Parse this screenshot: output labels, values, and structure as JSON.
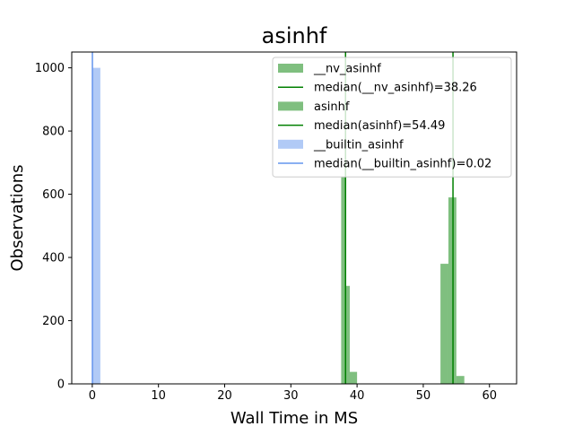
{
  "chart_data": {
    "type": "bar",
    "title": "asinhf",
    "xlabel": "Wall Time in MS",
    "ylabel": "Observations",
    "xlim": [
      -3.1,
      64.1
    ],
    "ylim": [
      0,
      1050
    ],
    "xticks": [
      0,
      10,
      20,
      30,
      40,
      50,
      60
    ],
    "yticks": [
      0,
      200,
      400,
      600,
      800,
      1000
    ],
    "grid": false,
    "legend_position": "top-right",
    "series": [
      {
        "name": "__nv_asinhf",
        "kind": "histogram",
        "color": "#008000",
        "alpha": 0.5,
        "bins": [
          {
            "x0": 37.6,
            "x1": 38.3,
            "count": 655
          },
          {
            "x0": 38.3,
            "x1": 38.9,
            "count": 310
          },
          {
            "x0": 38.9,
            "x1": 40.0,
            "count": 38
          }
        ]
      },
      {
        "name": "median(__nv_asinhf)=38.26",
        "kind": "median-line",
        "color": "#008000",
        "x": 38.26
      },
      {
        "name": "asinhf",
        "kind": "histogram",
        "color": "#008000",
        "alpha": 0.5,
        "bins": [
          {
            "x0": 52.6,
            "x1": 53.8,
            "count": 380
          },
          {
            "x0": 53.8,
            "x1": 55.0,
            "count": 590
          },
          {
            "x0": 55.0,
            "x1": 56.2,
            "count": 25
          }
        ]
      },
      {
        "name": "median(asinhf)=54.49",
        "kind": "median-line",
        "color": "#008000",
        "x": 54.49
      },
      {
        "name": "__builtin_asinhf",
        "kind": "histogram",
        "color": "#6495ed",
        "alpha": 0.5,
        "bins": [
          {
            "x0": 0.0,
            "x1": 1.22,
            "count": 1000
          }
        ]
      },
      {
        "name": "median(__builtin_asinhf)=0.02",
        "kind": "median-line",
        "color": "#6495ed",
        "x": 0.02
      }
    ]
  }
}
